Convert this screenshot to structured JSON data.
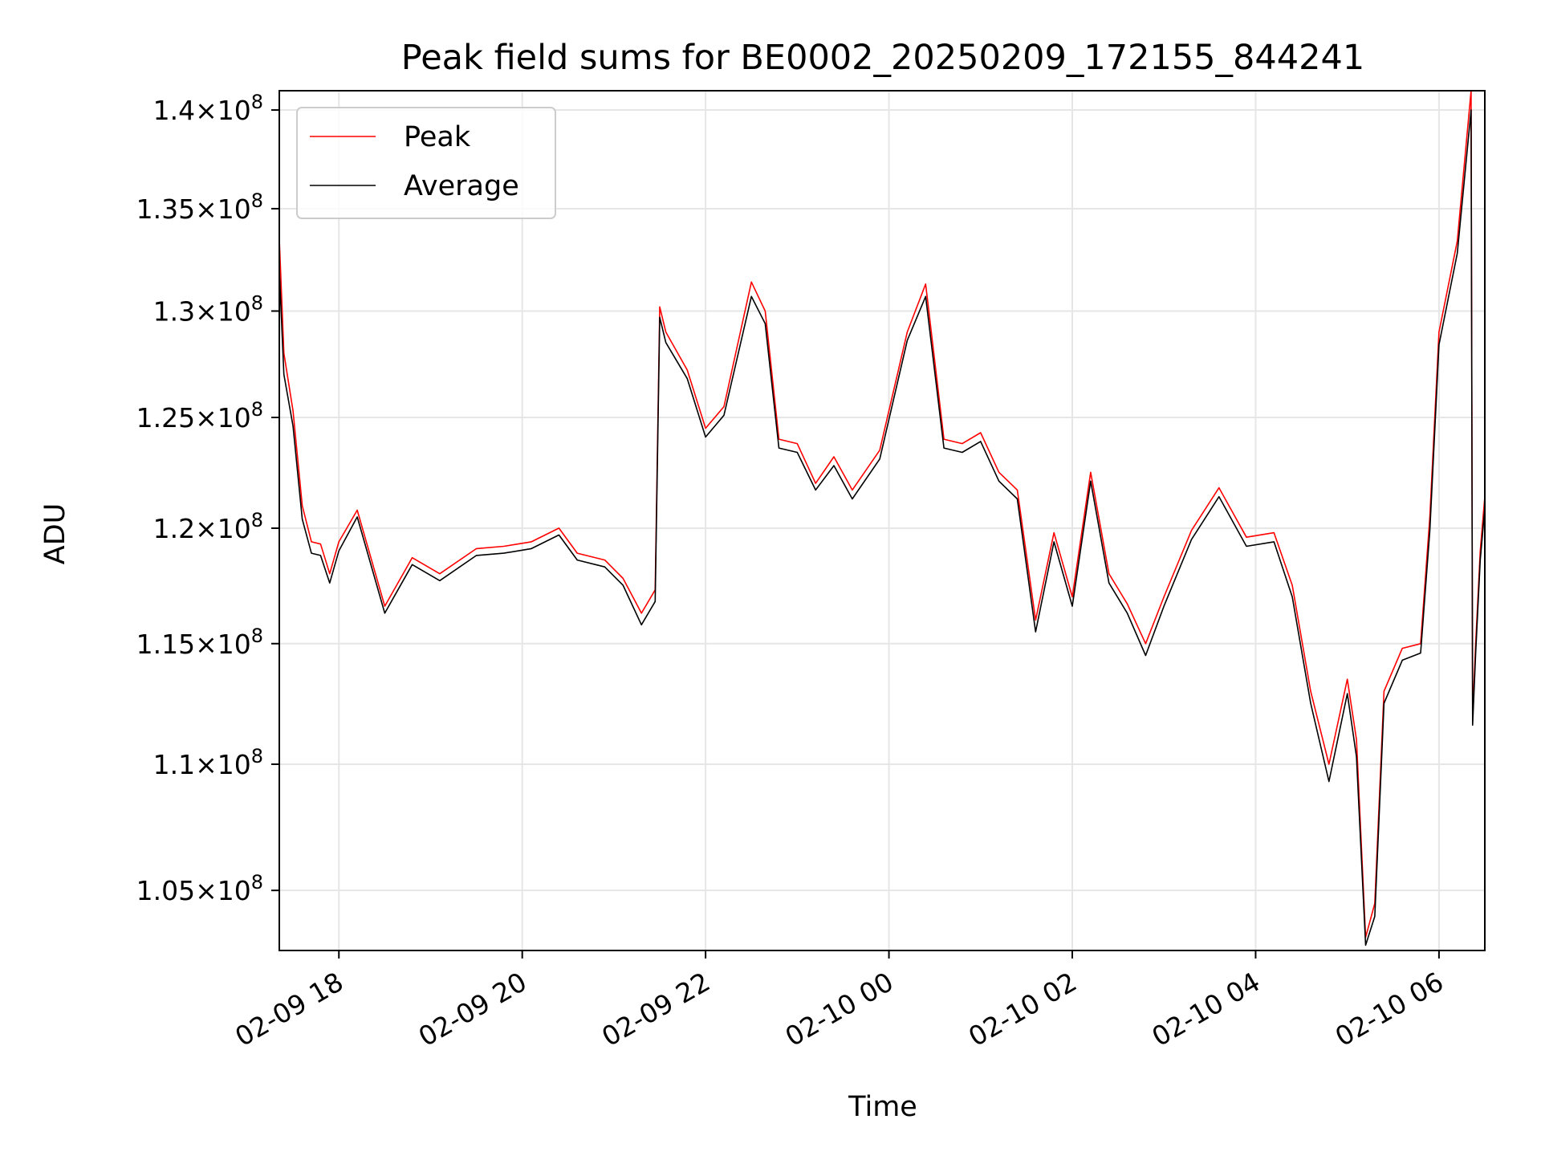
{
  "chart_data": {
    "type": "line",
    "title": "Peak field sums for BE0002_20250209_172155_844241",
    "xlabel": "Time",
    "ylabel": "ADU",
    "y_scale": "log",
    "xlim": [
      "2025-02-09 17:21",
      "2025-02-10 06:30"
    ],
    "ylim": [
      102700000,
      141000000
    ],
    "grid": true,
    "legend_position": "top-left",
    "x_ticks": [
      "02-09 18",
      "02-09 20",
      "02-09 22",
      "02-10 00",
      "02-10 02",
      "02-10 04",
      "02-10 06"
    ],
    "y_ticks": [
      {
        "mantissa": "1.05",
        "power": "8",
        "value": 105000000
      },
      {
        "mantissa": "1.1",
        "power": "8",
        "value": 110000000
      },
      {
        "mantissa": "1.15",
        "power": "8",
        "value": 115000000
      },
      {
        "mantissa": "1.2",
        "power": "8",
        "value": 120000000
      },
      {
        "mantissa": "1.25",
        "power": "8",
        "value": 125000000
      },
      {
        "mantissa": "1.3",
        "power": "8",
        "value": 130000000
      },
      {
        "mantissa": "1.35",
        "power": "8",
        "value": 135000000
      },
      {
        "mantissa": "1.4",
        "power": "8",
        "value": 140000000
      }
    ],
    "series": [
      {
        "name": "Peak",
        "color": "#ff0000",
        "x": [
          "2025-02-09 17:21",
          "2025-02-09 17:24",
          "2025-02-09 17:30",
          "2025-02-09 17:36",
          "2025-02-09 17:42",
          "2025-02-09 17:48",
          "2025-02-09 17:54",
          "2025-02-09 18:00",
          "2025-02-09 18:12",
          "2025-02-09 18:30",
          "2025-02-09 18:48",
          "2025-02-09 19:06",
          "2025-02-09 19:30",
          "2025-02-09 19:48",
          "2025-02-09 20:06",
          "2025-02-09 20:24",
          "2025-02-09 20:36",
          "2025-02-09 20:54",
          "2025-02-09 21:06",
          "2025-02-09 21:18",
          "2025-02-09 21:27",
          "2025-02-09 21:30",
          "2025-02-09 21:34",
          "2025-02-09 21:48",
          "2025-02-09 22:00",
          "2025-02-09 22:12",
          "2025-02-09 22:30",
          "2025-02-09 22:39",
          "2025-02-09 22:48",
          "2025-02-09 23:00",
          "2025-02-09 23:12",
          "2025-02-09 23:24",
          "2025-02-09 23:36",
          "2025-02-09 23:54",
          "2025-02-10 00:12",
          "2025-02-10 00:24",
          "2025-02-10 00:36",
          "2025-02-10 00:48",
          "2025-02-10 01:00",
          "2025-02-10 01:12",
          "2025-02-10 01:24",
          "2025-02-10 01:36",
          "2025-02-10 01:48",
          "2025-02-10 02:00",
          "2025-02-10 02:12",
          "2025-02-10 02:24",
          "2025-02-10 02:36",
          "2025-02-10 02:48",
          "2025-02-10 03:00",
          "2025-02-10 03:18",
          "2025-02-10 03:36",
          "2025-02-10 03:54",
          "2025-02-10 04:12",
          "2025-02-10 04:24",
          "2025-02-10 04:36",
          "2025-02-10 04:48",
          "2025-02-10 05:00",
          "2025-02-10 05:06",
          "2025-02-10 05:12",
          "2025-02-10 05:18",
          "2025-02-10 05:24",
          "2025-02-10 05:36",
          "2025-02-10 05:48",
          "2025-02-10 05:54",
          "2025-02-10 06:00",
          "2025-02-10 06:12",
          "2025-02-10 06:21",
          "2025-02-10 06:22",
          "2025-02-10 06:24",
          "2025-02-10 06:27",
          "2025-02-10 06:30"
        ],
        "y": [
          133500000,
          128000000,
          125300000,
          121000000,
          119400000,
          119300000,
          118000000,
          119400000,
          120800000,
          116600000,
          118700000,
          118000000,
          119100000,
          119200000,
          119400000,
          120000000,
          118900000,
          118600000,
          117800000,
          116300000,
          117300000,
          130200000,
          129000000,
          127200000,
          124500000,
          125500000,
          131400000,
          130000000,
          124000000,
          123800000,
          122000000,
          123200000,
          121700000,
          123500000,
          129000000,
          131300000,
          124000000,
          123800000,
          124300000,
          122500000,
          121700000,
          116000000,
          119800000,
          117000000,
          122500000,
          118000000,
          116700000,
          115000000,
          117000000,
          119900000,
          121800000,
          119600000,
          119800000,
          117500000,
          113000000,
          110000000,
          113500000,
          111000000,
          103200000,
          104500000,
          113000000,
          114800000,
          115000000,
          120500000,
          129000000,
          133400000,
          141000000,
          112000000,
          115000000,
          119000000,
          121400000
        ]
      },
      {
        "name": "Average",
        "color": "#000000",
        "x": [
          "2025-02-09 17:21",
          "2025-02-09 17:24",
          "2025-02-09 17:30",
          "2025-02-09 17:36",
          "2025-02-09 17:42",
          "2025-02-09 17:48",
          "2025-02-09 17:54",
          "2025-02-09 18:00",
          "2025-02-09 18:12",
          "2025-02-09 18:30",
          "2025-02-09 18:48",
          "2025-02-09 19:06",
          "2025-02-09 19:30",
          "2025-02-09 19:48",
          "2025-02-09 20:06",
          "2025-02-09 20:24",
          "2025-02-09 20:36",
          "2025-02-09 20:54",
          "2025-02-09 21:06",
          "2025-02-09 21:18",
          "2025-02-09 21:27",
          "2025-02-09 21:30",
          "2025-02-09 21:34",
          "2025-02-09 21:48",
          "2025-02-09 22:00",
          "2025-02-09 22:12",
          "2025-02-09 22:30",
          "2025-02-09 22:39",
          "2025-02-09 22:48",
          "2025-02-09 23:00",
          "2025-02-09 23:12",
          "2025-02-09 23:24",
          "2025-02-09 23:36",
          "2025-02-09 23:54",
          "2025-02-10 00:12",
          "2025-02-10 00:24",
          "2025-02-10 00:36",
          "2025-02-10 00:48",
          "2025-02-10 01:00",
          "2025-02-10 01:12",
          "2025-02-10 01:24",
          "2025-02-10 01:36",
          "2025-02-10 01:48",
          "2025-02-10 02:00",
          "2025-02-10 02:12",
          "2025-02-10 02:24",
          "2025-02-10 02:36",
          "2025-02-10 02:48",
          "2025-02-10 03:00",
          "2025-02-10 03:18",
          "2025-02-10 03:36",
          "2025-02-10 03:54",
          "2025-02-10 04:12",
          "2025-02-10 04:24",
          "2025-02-10 04:36",
          "2025-02-10 04:48",
          "2025-02-10 05:00",
          "2025-02-10 05:06",
          "2025-02-10 05:12",
          "2025-02-10 05:18",
          "2025-02-10 05:24",
          "2025-02-10 05:36",
          "2025-02-10 05:48",
          "2025-02-10 05:54",
          "2025-02-10 06:00",
          "2025-02-10 06:12",
          "2025-02-10 06:21",
          "2025-02-10 06:22",
          "2025-02-10 06:24",
          "2025-02-10 06:27",
          "2025-02-10 06:30"
        ],
        "y": [
          132000000,
          127000000,
          124600000,
          120400000,
          118900000,
          118800000,
          117600000,
          119000000,
          120500000,
          116300000,
          118400000,
          117700000,
          118800000,
          118900000,
          119100000,
          119700000,
          118600000,
          118300000,
          117500000,
          115800000,
          116800000,
          129700000,
          128500000,
          126800000,
          124100000,
          125100000,
          130700000,
          129400000,
          123600000,
          123400000,
          121700000,
          122800000,
          121300000,
          123100000,
          128600000,
          130700000,
          123600000,
          123400000,
          123900000,
          122100000,
          121300000,
          115500000,
          119400000,
          116600000,
          122100000,
          117600000,
          116300000,
          114500000,
          116600000,
          119500000,
          121400000,
          119200000,
          119400000,
          117000000,
          112500000,
          109300000,
          112900000,
          110300000,
          102900000,
          104000000,
          112500000,
          114300000,
          114600000,
          119900000,
          128400000,
          132800000,
          140000000,
          111600000,
          114600000,
          118600000,
          120900000
        ]
      }
    ]
  }
}
